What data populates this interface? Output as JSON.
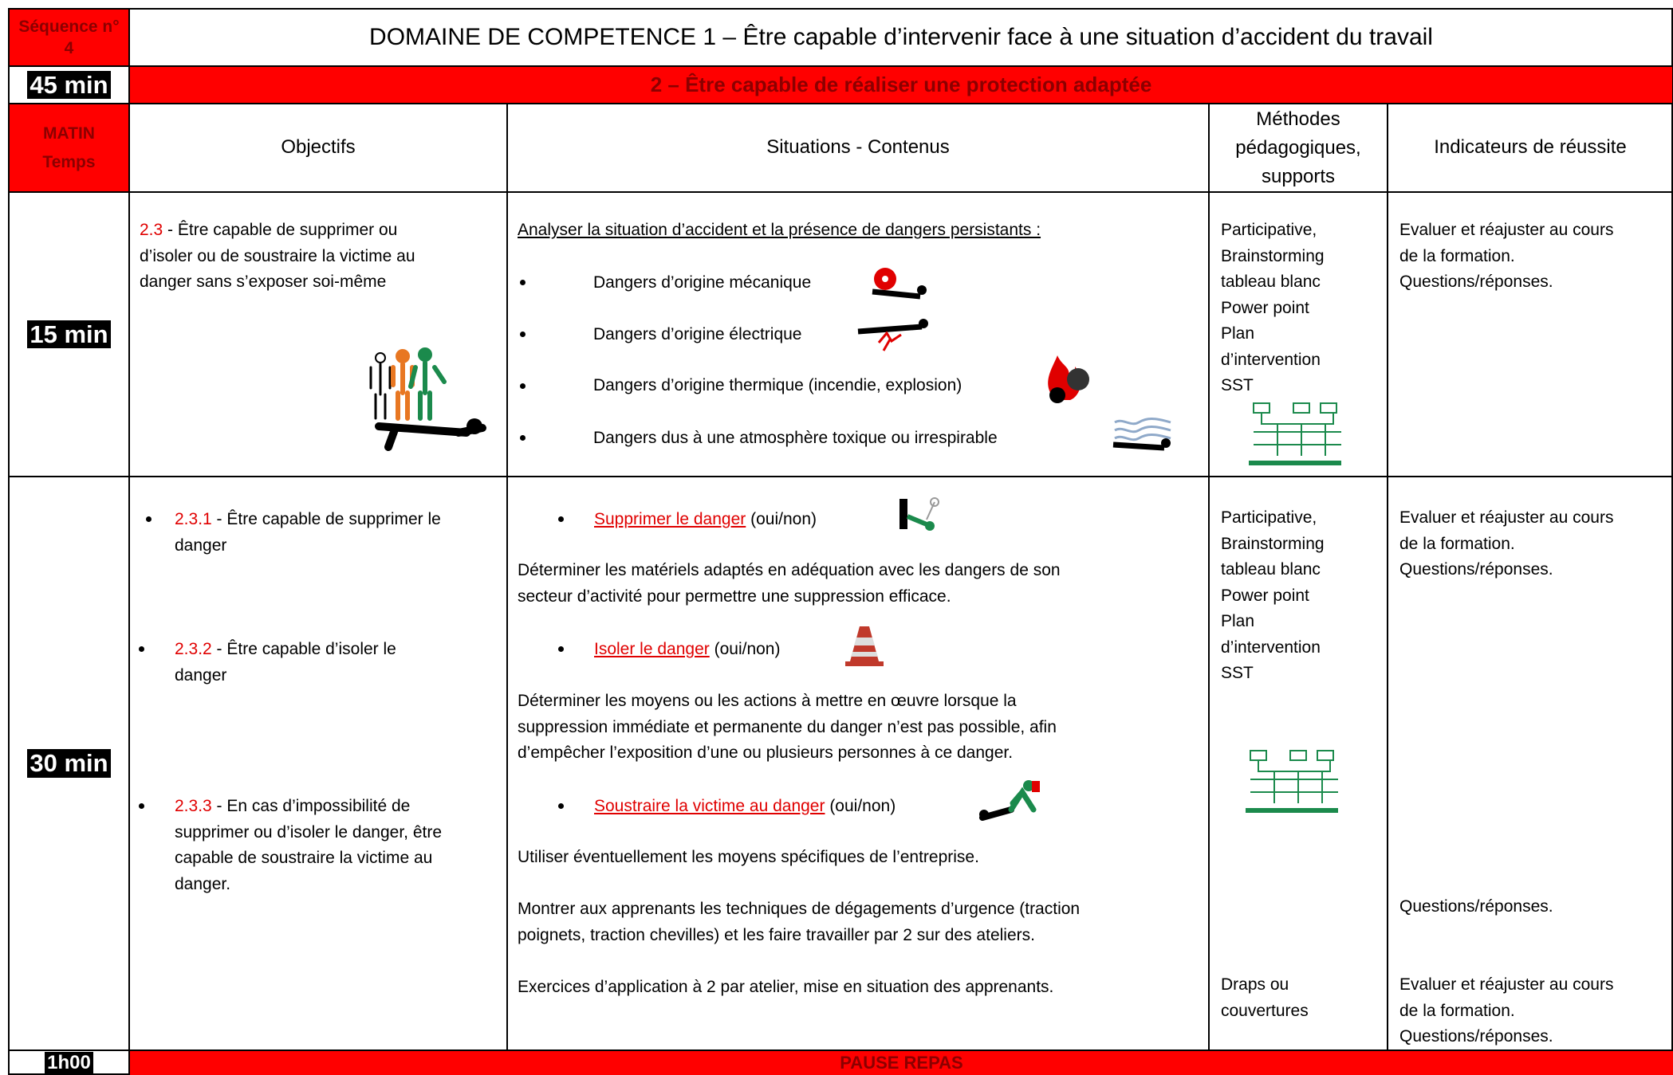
{
  "header": {
    "sequence": "Séquence n° 4",
    "domain": "DOMAINE DE COMPETENCE 1 – Être capable d’intervenir face à une situation d’accident du travail",
    "duration": "45 min",
    "subtitle": "2 – Être capable de réaliser une protection adaptée"
  },
  "columns": {
    "time": "MATIN Temps",
    "objectives": "Objectifs",
    "contents": "Situations - Contenus",
    "methods": "Méthodes pédagogiques, supports",
    "indicators": "Indicateurs de réussite"
  },
  "rows": [
    {
      "time": "15 min",
      "objectives": [
        {
          "code": "2.3",
          "text": " - Être capable de supprimer ou",
          "lines": [
            "d’isoler ou de soustraire la victime au",
            "danger sans s’exposer soi-même"
          ]
        }
      ],
      "contents": {
        "heading": "Analyser la situation d’accident et la présence de dangers persistants :",
        "bullets": [
          "Dangers d’origine mécanique",
          "Dangers d’origine électrique",
          "Dangers d’origine thermique (incendie, explosion)",
          "Dangers dus à une atmosphère toxique ou irrespirable"
        ]
      },
      "methods": [
        "Participative,",
        "Brainstorming",
        "tableau blanc",
        "Power point",
        "Plan",
        "d’intervention",
        "SST"
      ],
      "indicators": [
        "Evaluer et réajuster au cours",
        "de la formation.",
        "Questions/réponses."
      ]
    },
    {
      "time": "30 min",
      "objectives": [
        {
          "code": "2.3.1",
          "text": " - Être capable de supprimer le",
          "lines": [
            "danger"
          ]
        },
        {
          "code": "2.3.2",
          "text": " - Être capable d’isoler le",
          "lines": [
            "danger"
          ]
        },
        {
          "code": "2.3.3",
          "text": " - En cas d’impossibilité de",
          "lines": [
            "supprimer ou d’isoler le danger, être",
            "capable de soustraire la victime au",
            "danger."
          ]
        }
      ],
      "contents": {
        "actions": [
          {
            "link": "Supprimer le danger",
            "note": " (oui/non)",
            "paragraph": [
              "Déterminer les matériels adaptés en adéquation avec les dangers de son",
              "secteur d’activité pour permettre une suppression efficace."
            ]
          },
          {
            "link": "Isoler le danger",
            "note": " (oui/non)",
            "paragraph": [
              "Déterminer les moyens ou les actions à mettre en œuvre lorsque la",
              "suppression immédiate et permanente du danger n’est pas possible, afin",
              "d’empêcher l’exposition d’une ou plusieurs personnes à ce danger."
            ]
          },
          {
            "link": "Soustraire la victime au danger",
            "note": " (oui/non)",
            "paragraph": [
              "Utiliser éventuellement les moyens spécifiques de l’entreprise."
            ]
          }
        ],
        "demo": [
          "Montrer aux apprenants les techniques de dégagements d’urgence (traction",
          "poignets, traction chevilles) et les faire travailler par 2 sur des ateliers."
        ],
        "exercise": "Exercices d’application à 2 par atelier, mise en situation des apprenants."
      },
      "methods": [
        "Participative,",
        "Brainstorming",
        "tableau blanc",
        "Power point",
        "Plan",
        "d’intervention",
        "SST"
      ],
      "materials": [
        "Draps ou",
        "couvertures"
      ],
      "indicators": [
        "Evaluer et réajuster au cours",
        "de la formation.",
        "Questions/réponses."
      ],
      "indicators_mid": "Questions/réponses.",
      "indicators_end": [
        "Evaluer et réajuster au cours",
        "de la formation.",
        "Questions/réponses."
      ]
    }
  ],
  "footer": {
    "time": "1h00",
    "label": "PAUSE REPAS"
  }
}
